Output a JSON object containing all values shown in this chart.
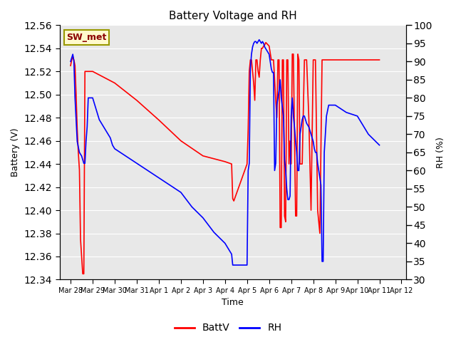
{
  "title": "Battery Voltage and RH",
  "xlabel": "Time",
  "ylabel_left": "Battery (V)",
  "ylabel_right": "RH (%)",
  "ylim_left": [
    12.34,
    12.56
  ],
  "ylim_right": [
    30,
    100
  ],
  "yticks_left": [
    12.34,
    12.36,
    12.38,
    12.4,
    12.42,
    12.44,
    12.46,
    12.48,
    12.5,
    12.52,
    12.54,
    12.56
  ],
  "yticks_right": [
    30,
    35,
    40,
    45,
    50,
    55,
    60,
    65,
    70,
    75,
    80,
    85,
    90,
    95,
    100
  ],
  "label_box_text": "SW_met",
  "label_box_bg": "#FFFACD",
  "label_box_border": "#999900",
  "label_box_text_color": "#8B0000",
  "bg_color": "#E8E8E8",
  "line_color_batt": "red",
  "line_color_rh": "blue",
  "line_width": 1.2,
  "batt_data": [
    [
      0,
      12.525
    ],
    [
      0.05,
      12.53
    ],
    [
      0.1,
      12.533
    ],
    [
      0.15,
      12.53
    ],
    [
      0.2,
      12.525
    ],
    [
      0.25,
      12.5
    ],
    [
      0.3,
      12.47
    ],
    [
      0.35,
      12.45
    ],
    [
      0.4,
      12.435
    ],
    [
      0.45,
      12.375
    ],
    [
      0.5,
      12.36
    ],
    [
      0.55,
      12.345
    ],
    [
      0.6,
      12.345
    ],
    [
      0.65,
      12.52
    ],
    [
      0.7,
      12.52
    ],
    [
      0.75,
      12.52
    ],
    [
      1.0,
      12.52
    ],
    [
      1.5,
      12.515
    ],
    [
      2.0,
      12.51
    ],
    [
      3.0,
      12.495
    ],
    [
      4.0,
      12.478
    ],
    [
      5.0,
      12.46
    ],
    [
      6.0,
      12.447
    ],
    [
      7.0,
      12.442
    ],
    [
      7.3,
      12.44
    ],
    [
      7.35,
      12.41
    ],
    [
      7.4,
      12.408
    ],
    [
      8.0,
      12.44
    ],
    [
      8.05,
      12.47
    ],
    [
      8.1,
      12.52
    ],
    [
      8.15,
      12.53
    ],
    [
      8.2,
      12.53
    ],
    [
      8.3,
      12.51
    ],
    [
      8.35,
      12.495
    ],
    [
      8.4,
      12.53
    ],
    [
      8.45,
      12.53
    ],
    [
      8.5,
      12.52
    ],
    [
      8.55,
      12.515
    ],
    [
      8.6,
      12.53
    ],
    [
      8.65,
      12.54
    ],
    [
      8.7,
      12.54
    ],
    [
      8.75,
      12.542
    ],
    [
      8.8,
      12.543
    ],
    [
      8.85,
      12.545
    ],
    [
      8.9,
      12.544
    ],
    [
      8.95,
      12.543
    ],
    [
      9.0,
      12.542
    ],
    [
      9.1,
      12.53
    ],
    [
      9.2,
      12.53
    ],
    [
      9.3,
      12.495
    ],
    [
      9.35,
      12.48
    ],
    [
      9.4,
      12.53
    ],
    [
      9.45,
      12.53
    ],
    [
      9.5,
      12.385
    ],
    [
      9.55,
      12.385
    ],
    [
      9.6,
      12.53
    ],
    [
      9.65,
      12.53
    ],
    [
      9.7,
      12.395
    ],
    [
      9.75,
      12.39
    ],
    [
      9.8,
      12.53
    ],
    [
      9.85,
      12.53
    ],
    [
      9.9,
      12.44
    ],
    [
      9.95,
      12.46
    ],
    [
      10.0,
      12.44
    ],
    [
      10.05,
      12.535
    ],
    [
      10.1,
      12.535
    ],
    [
      10.2,
      12.395
    ],
    [
      10.25,
      12.395
    ],
    [
      10.3,
      12.535
    ],
    [
      10.35,
      12.53
    ],
    [
      10.4,
      12.44
    ],
    [
      10.5,
      12.44
    ],
    [
      10.6,
      12.53
    ],
    [
      10.7,
      12.53
    ],
    [
      10.8,
      12.48
    ],
    [
      10.9,
      12.4
    ],
    [
      11.0,
      12.53
    ],
    [
      11.1,
      12.53
    ],
    [
      11.2,
      12.4
    ],
    [
      11.3,
      12.38
    ],
    [
      11.4,
      12.53
    ],
    [
      11.5,
      12.53
    ],
    [
      11.6,
      12.53
    ],
    [
      12.0,
      12.53
    ],
    [
      12.5,
      12.53
    ],
    [
      13.0,
      12.53
    ],
    [
      13.5,
      12.53
    ],
    [
      14.0,
      12.53
    ]
  ],
  "rh_data": [
    [
      0,
      90
    ],
    [
      0.05,
      91
    ],
    [
      0.1,
      92
    ],
    [
      0.15,
      90
    ],
    [
      0.2,
      80
    ],
    [
      0.3,
      68
    ],
    [
      0.4,
      65
    ],
    [
      0.5,
      64
    ],
    [
      0.6,
      62
    ],
    [
      0.65,
      62
    ],
    [
      0.7,
      68
    ],
    [
      0.75,
      72
    ],
    [
      0.8,
      80
    ],
    [
      0.85,
      80
    ],
    [
      0.9,
      80
    ],
    [
      1.0,
      80
    ],
    [
      1.2,
      76
    ],
    [
      1.3,
      74
    ],
    [
      1.4,
      73
    ],
    [
      1.5,
      72
    ],
    [
      1.6,
      71
    ],
    [
      1.7,
      70
    ],
    [
      1.8,
      69
    ],
    [
      1.9,
      67
    ],
    [
      2.0,
      66
    ],
    [
      2.5,
      64
    ],
    [
      3.0,
      62
    ],
    [
      3.5,
      60
    ],
    [
      4.0,
      58
    ],
    [
      4.5,
      56
    ],
    [
      5.0,
      54
    ],
    [
      5.5,
      50
    ],
    [
      6.0,
      47
    ],
    [
      6.5,
      43
    ],
    [
      7.0,
      40
    ],
    [
      7.3,
      37
    ],
    [
      7.35,
      34
    ],
    [
      8.0,
      34
    ],
    [
      8.05,
      60
    ],
    [
      8.1,
      62
    ],
    [
      8.15,
      88
    ],
    [
      8.2,
      92
    ],
    [
      8.25,
      94
    ],
    [
      8.3,
      95
    ],
    [
      8.35,
      95.5
    ],
    [
      8.4,
      95.5
    ],
    [
      8.45,
      95
    ],
    [
      8.5,
      95.5
    ],
    [
      8.55,
      96
    ],
    [
      8.6,
      95.5
    ],
    [
      8.65,
      95
    ],
    [
      8.7,
      95.5
    ],
    [
      8.75,
      95
    ],
    [
      8.8,
      94
    ],
    [
      8.9,
      93
    ],
    [
      9.0,
      92
    ],
    [
      9.05,
      90
    ],
    [
      9.1,
      88
    ],
    [
      9.15,
      87
    ],
    [
      9.2,
      87
    ],
    [
      9.25,
      60
    ],
    [
      9.3,
      62
    ],
    [
      9.35,
      78
    ],
    [
      9.4,
      80
    ],
    [
      9.45,
      82
    ],
    [
      9.5,
      85
    ],
    [
      9.55,
      80
    ],
    [
      9.65,
      75
    ],
    [
      9.7,
      63
    ],
    [
      9.75,
      60
    ],
    [
      9.8,
      55
    ],
    [
      9.85,
      52
    ],
    [
      9.9,
      52
    ],
    [
      9.95,
      53
    ],
    [
      10.0,
      75
    ],
    [
      10.05,
      80
    ],
    [
      10.1,
      75
    ],
    [
      10.15,
      72
    ],
    [
      10.2,
      68
    ],
    [
      10.25,
      65
    ],
    [
      10.3,
      60
    ],
    [
      10.35,
      60
    ],
    [
      10.4,
      70
    ],
    [
      10.45,
      72
    ],
    [
      10.5,
      74
    ],
    [
      10.55,
      75
    ],
    [
      10.6,
      75
    ],
    [
      10.7,
      73
    ],
    [
      10.8,
      72
    ],
    [
      10.9,
      70
    ],
    [
      11.0,
      68
    ],
    [
      11.05,
      66
    ],
    [
      11.1,
      65
    ],
    [
      11.15,
      65
    ],
    [
      11.2,
      62
    ],
    [
      11.25,
      60
    ],
    [
      11.3,
      58
    ],
    [
      11.35,
      56
    ],
    [
      11.4,
      35
    ],
    [
      11.45,
      35
    ],
    [
      11.5,
      65
    ],
    [
      11.55,
      70
    ],
    [
      11.6,
      75
    ],
    [
      11.7,
      78
    ],
    [
      12.0,
      78
    ],
    [
      12.5,
      76
    ],
    [
      13.0,
      75
    ],
    [
      13.5,
      70
    ],
    [
      14.0,
      67
    ]
  ],
  "xtick_labels": [
    "Mar 28",
    "Mar 29",
    "Mar 30",
    "Mar 31",
    "Apr 1",
    "Apr 2",
    "Apr 3",
    "Apr 4",
    "Apr 5",
    "Apr 6",
    "Apr 7",
    "Apr 8",
    "Apr 9",
    "Apr 10",
    "Apr 11",
    "Apr 12"
  ],
  "xtick_positions": [
    0,
    1,
    2,
    3,
    4,
    5,
    6,
    7,
    8,
    9,
    10,
    11,
    12,
    13,
    14,
    15
  ],
  "xlim": [
    -0.5,
    15.2
  ]
}
